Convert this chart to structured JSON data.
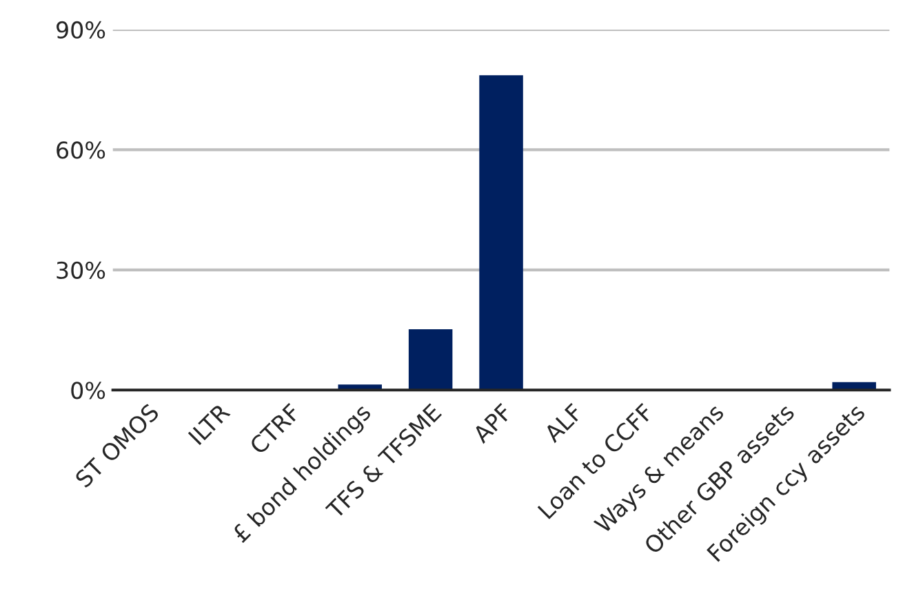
{
  "chart_data": {
    "type": "bar",
    "categories": [
      "ST OMOS",
      "ILTR",
      "CTRF",
      "£ bond holdings",
      "TFS & TFSME",
      "APF",
      "ALF",
      "Loan to CCFF",
      "Ways & means",
      "Other GBP assets",
      "Foreign ccy assets"
    ],
    "values": [
      0.2,
      0,
      0,
      1.4,
      15.2,
      78.6,
      0,
      0,
      0,
      0,
      2
    ],
    "color": "#002060",
    "ylim": [
      0,
      90
    ],
    "yticks": [
      {
        "value": 0,
        "label": "0%"
      },
      {
        "value": 30,
        "label": "30%"
      },
      {
        "value": 60,
        "label": "60%"
      },
      {
        "value": 90,
        "label": "90%"
      }
    ],
    "grid": "y"
  }
}
